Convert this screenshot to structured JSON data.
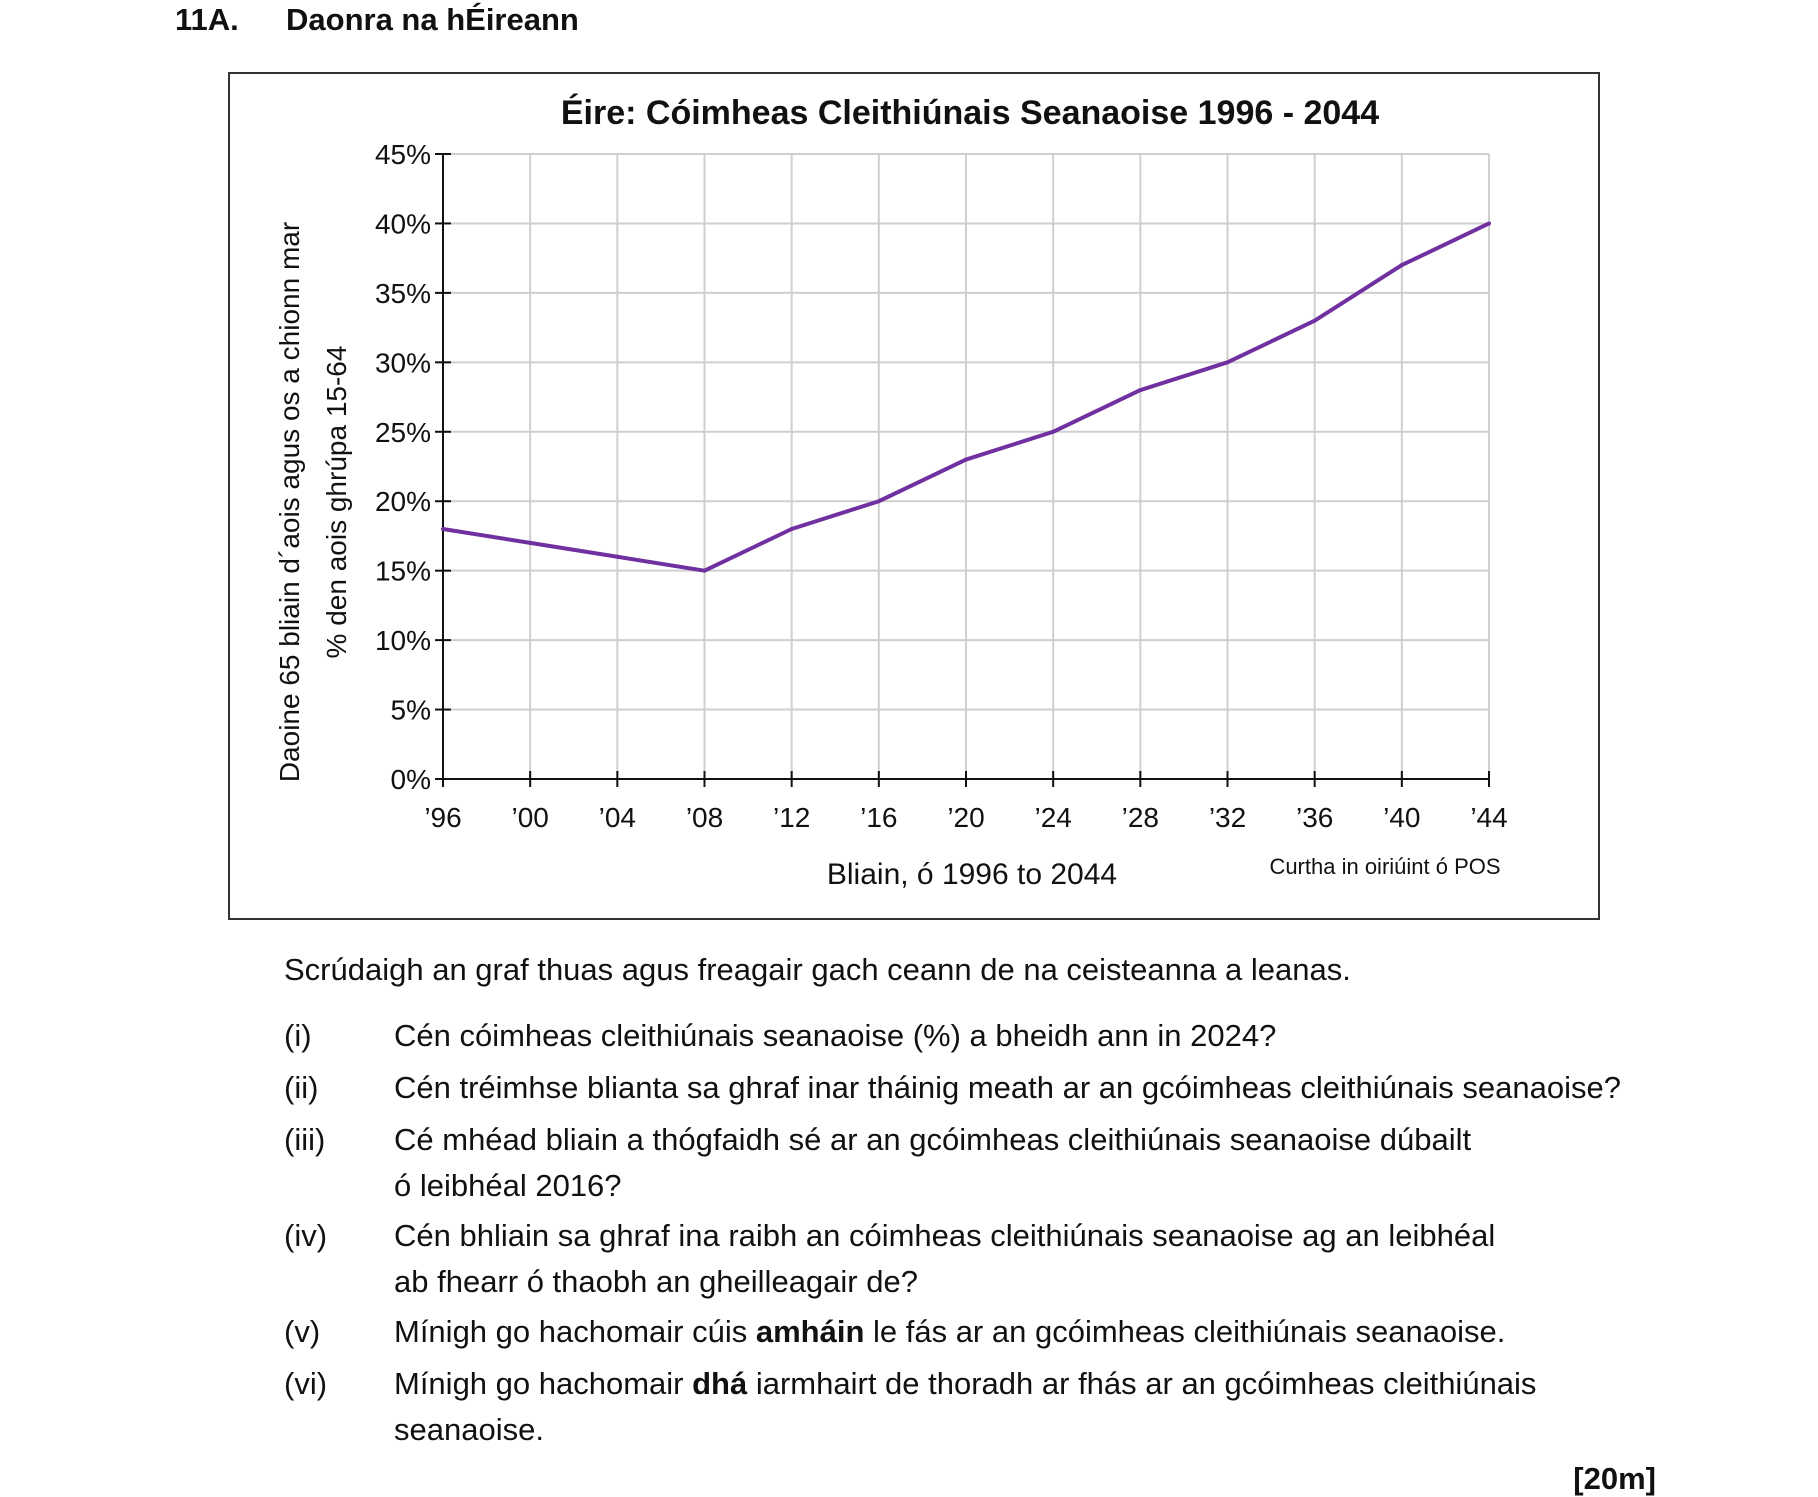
{
  "header": {
    "number": "11A.",
    "title": "Daonra na hÉireann"
  },
  "chart_data": {
    "type": "line",
    "title": "Éire: Cóimheas Cleithiúnais Seanaoise 1996 - 2044",
    "xlabel": "Bliain, ó 1996 to 2044",
    "ylabel_line1": "Daoine 65 bliain d´aois agus os a chionn mar",
    "ylabel_line2": "% den aois ghrúpa 15-64",
    "source": "Curtha in oiriúint ó POS",
    "categories": [
      "’96",
      "’00",
      "’04",
      "’08",
      "’12",
      "’16",
      "’20",
      "’24",
      "’28",
      "’32",
      "’36",
      "’40",
      "’44"
    ],
    "y_tick_labels": [
      "0%",
      "5%",
      "10%",
      "15%",
      "20%",
      "25%",
      "30%",
      "35%",
      "40%",
      "45%"
    ],
    "ylim": [
      0,
      45
    ],
    "y_step": 5,
    "grid": true,
    "series": [
      {
        "name": "Cóimheas Cleithiúnais Seanaoise",
        "values": [
          18,
          17,
          16,
          15,
          18,
          20,
          23,
          25,
          28,
          30,
          33,
          37,
          40
        ]
      }
    ],
    "line_color": "#7030a0"
  },
  "intro": "Scrúdaigh an graf thuas agus freagair gach ceann de na ceisteanna a leanas.",
  "questions": [
    {
      "label": "(i)",
      "line1": "Cén cóimheas cleithiúnais seanaoise (%) a bheidh ann in 2024?"
    },
    {
      "label": "(ii)",
      "line1": "Cén tréimhse blianta sa ghraf inar tháinig meath ar an gcóimheas cleithiúnais seanaoise?"
    },
    {
      "label": "(iii)",
      "line1": "Cé mhéad bliain a thógfaidh sé ar an gcóimheas cleithiúnais seanaoise dúbailt",
      "line2": "ó leibhéal 2016?"
    },
    {
      "label": "(iv)",
      "line1": "Cén bhliain sa ghraf ina raibh an cóimheas cleithiúnais seanaoise ag an leibhéal",
      "line2": "ab fhearr ó thaobh an gheilleagair de?"
    },
    {
      "label": "(v)",
      "pre": "Mínigh go hachomair cúis ",
      "bold": "amháin",
      "post": " le fás ar an gcóimheas cleithiúnais seanaoise."
    },
    {
      "label": "(vi)",
      "pre": "Mínigh go hachomair ",
      "bold": "dhá",
      "post": " iarmhairt de thoradh ar fhás ar an gcóimheas cleithiúnais",
      "line2": "seanaoise."
    }
  ],
  "marks": "[20m]"
}
